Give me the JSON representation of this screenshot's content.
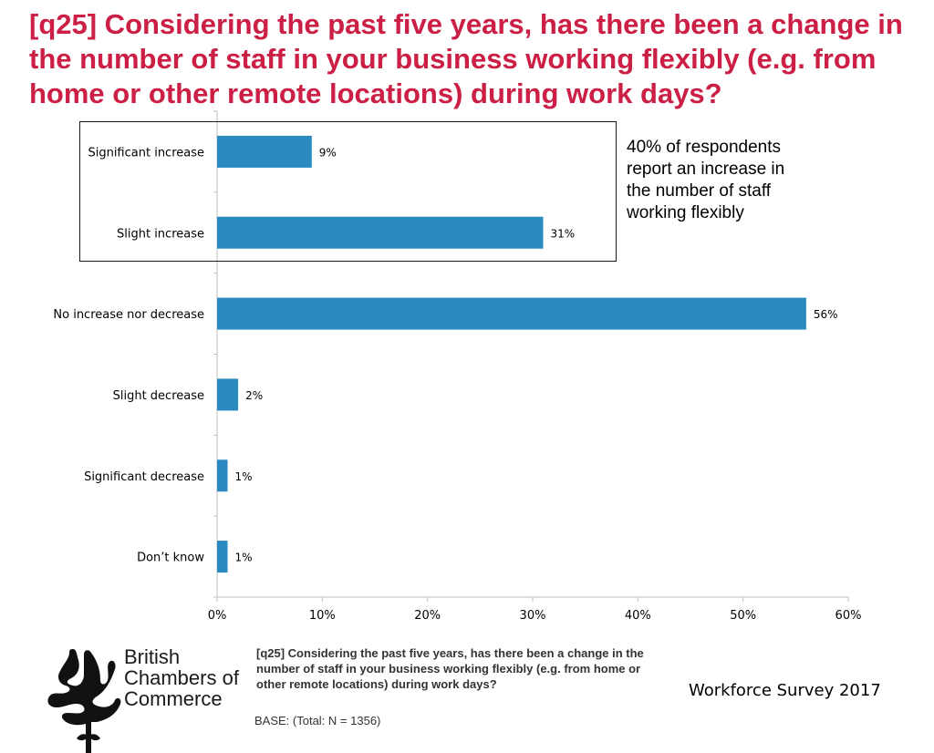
{
  "title": "[q25] Considering the past five years, has there been a change in the number of staff in your business working flexibly (e.g. from home or other remote locations) during work days?",
  "callout": "40% of respondents report an increase in the number of staff working flexibly",
  "footnote": "[q25] Considering the past five years, has there been a change in the number of staff in your business working flexibly (e.g. from home or other remote locations) during work days?",
  "base": "BASE: (Total: N = 1356)",
  "survey_label": "Workforce Survey 2017",
  "logo": {
    "line1": "British",
    "line2": "Chambers of",
    "line3": "Commerce",
    "icon": "flower-icon"
  },
  "colors": {
    "bar": "#2b8bc0",
    "title": "#cc1f45"
  },
  "chart_data": {
    "type": "bar",
    "orientation": "horizontal",
    "categories": [
      "Significant increase",
      "Slight increase",
      "No increase nor decrease",
      "Slight decrease",
      "Significant decrease",
      "Don’t know"
    ],
    "values": [
      9,
      31,
      56,
      2,
      1,
      1
    ],
    "value_labels": [
      "9%",
      "31%",
      "56%",
      "2%",
      "1%",
      "1%"
    ],
    "xlim": [
      0,
      60
    ],
    "xticks": [
      0,
      10,
      20,
      30,
      40,
      50,
      60
    ],
    "xtick_labels": [
      "0%",
      "10%",
      "20%",
      "30%",
      "40%",
      "50%",
      "60%"
    ],
    "grid": false,
    "highlighted_categories": [
      "Significant increase",
      "Slight increase"
    ]
  }
}
